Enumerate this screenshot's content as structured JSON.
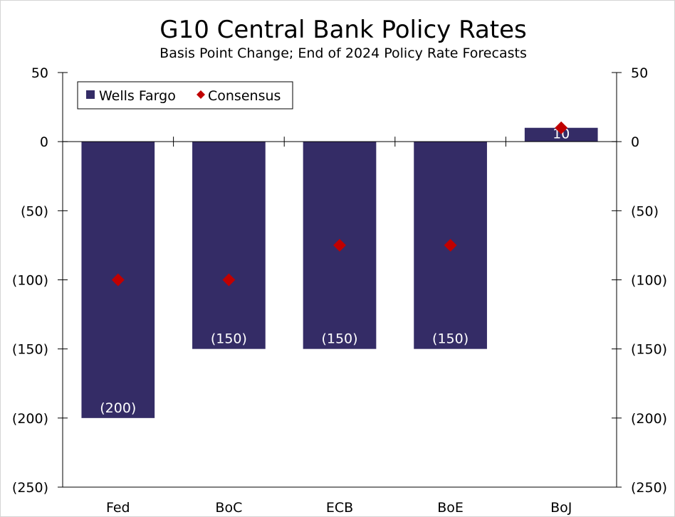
{
  "chart_data": {
    "type": "bar",
    "title": "G10 Central Bank Policy Rates",
    "subtitle": "Basis Point Change; End of 2024 Policy Rate Forecasts",
    "categories": [
      "Fed",
      "BoC",
      "ECB",
      "BoE",
      "BoJ"
    ],
    "series": [
      {
        "name": "Wells Fargo",
        "kind": "bar",
        "color": "#342c66",
        "values": [
          -200,
          -150,
          -150,
          -150,
          10
        ]
      },
      {
        "name": "Consensus",
        "kind": "marker",
        "marker": "diamond",
        "color": "#c00000",
        "values": [
          -100,
          -100,
          -75,
          -75,
          10
        ]
      }
    ],
    "data_labels": [
      "(200)",
      "(150)",
      "(150)",
      "(150)",
      "10"
    ],
    "yticks": [
      50,
      0,
      -50,
      -100,
      -150,
      -200,
      -250
    ],
    "ytick_labels": [
      "50",
      "0",
      "(50)",
      "(100)",
      "(150)",
      "(200)",
      "(250)"
    ],
    "ylim": [
      -250,
      50
    ],
    "secondary_y_axis": true,
    "legend": {
      "position": "top-left",
      "entries": [
        "Wells Fargo",
        "Consensus"
      ]
    },
    "grid": false
  }
}
